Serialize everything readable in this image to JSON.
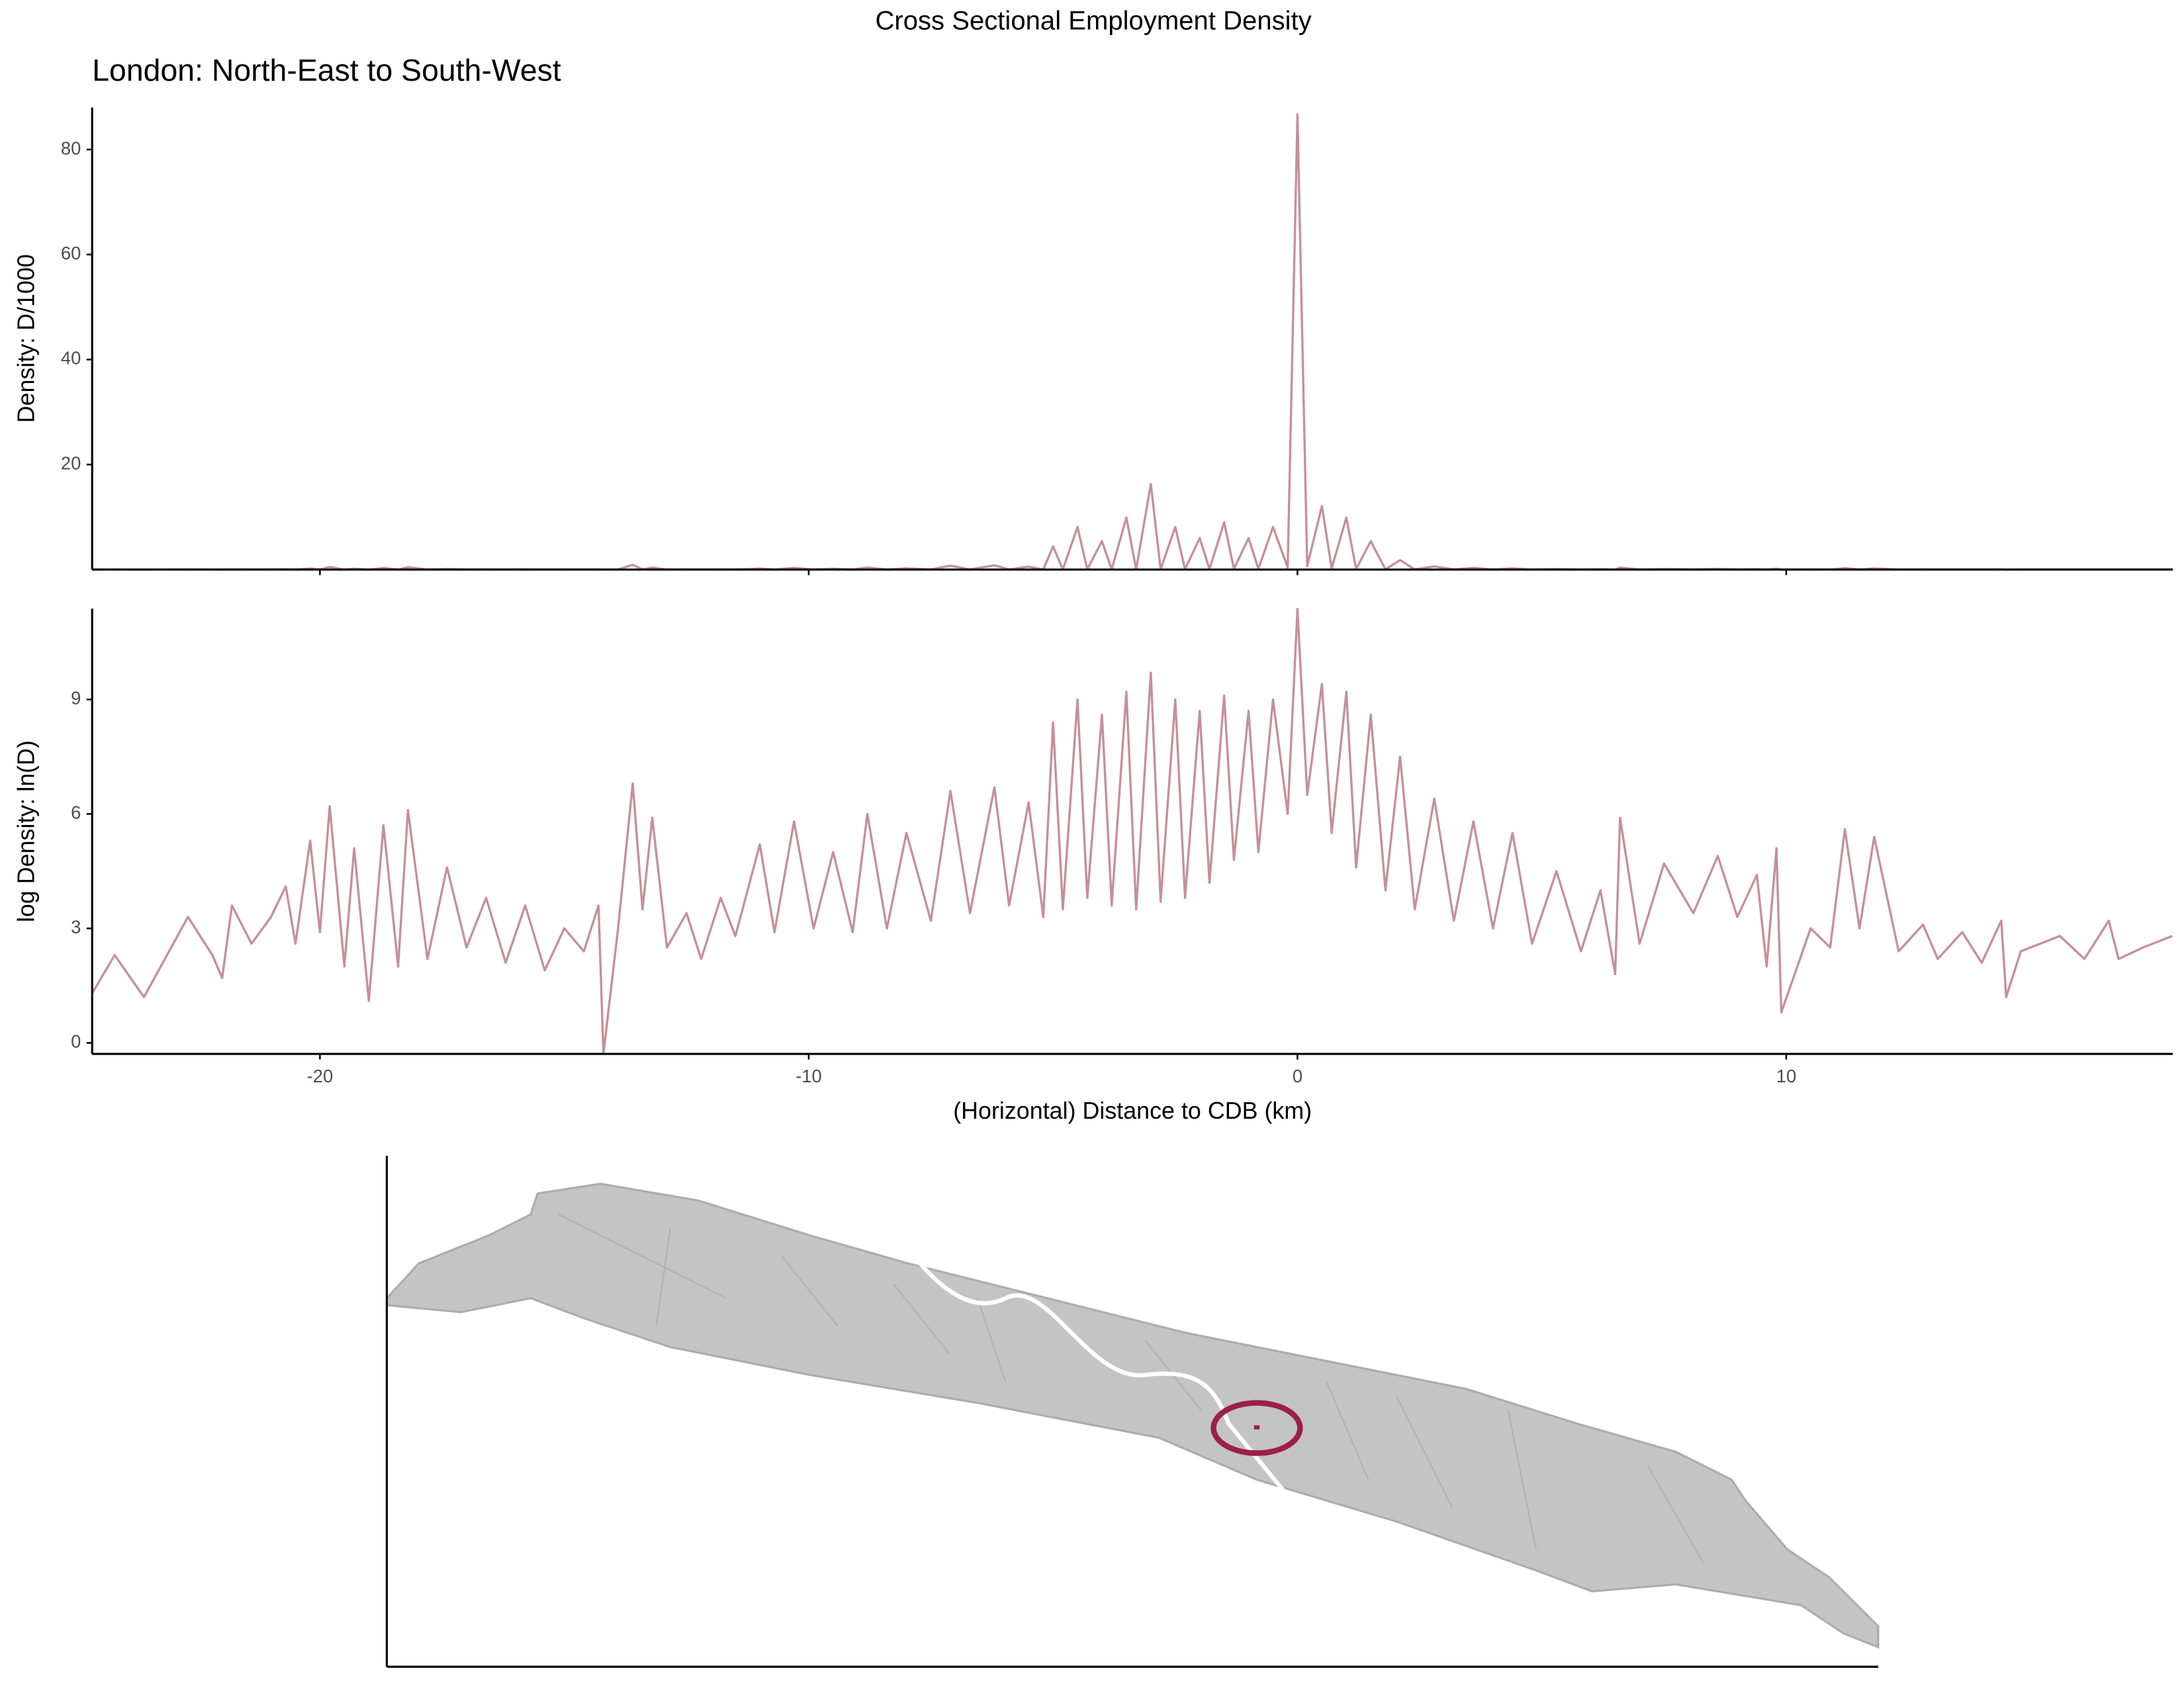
{
  "chart_data": [
    {
      "type": "line",
      "title": "Cross Sectional Employment Density",
      "subtitle": "London: North-East to South-West",
      "ylabel": "Density: D/1000",
      "xlim": [
        -24.66,
        17.91
      ],
      "ylim": [
        0,
        88
      ],
      "yticks": [
        20,
        40,
        60,
        80
      ],
      "x": [
        -24.66,
        -24.2,
        -23.6,
        -22.7,
        -22.2,
        -22.0,
        -21.8,
        -21.4,
        -21.0,
        -20.7,
        -20.5,
        -20.2,
        -20.0,
        -19.8,
        -19.5,
        -19.3,
        -19.0,
        -18.7,
        -18.4,
        -18.2,
        -17.8,
        -17.4,
        -17.0,
        -16.6,
        -16.2,
        -15.8,
        -15.4,
        -15.0,
        -14.6,
        -14.3,
        -14.2,
        -13.9,
        -13.6,
        -13.4,
        -13.2,
        -12.9,
        -12.5,
        -12.2,
        -11.8,
        -11.5,
        -11.0,
        -10.7,
        -10.3,
        -9.9,
        -9.5,
        -9.1,
        -8.8,
        -8.4,
        -8.0,
        -7.5,
        -7.1,
        -6.7,
        -6.2,
        -5.9,
        -5.5,
        -5.2,
        -5.0,
        -4.8,
        -4.5,
        -4.3,
        -4.0,
        -3.8,
        -3.5,
        -3.3,
        -3.0,
        -2.8,
        -2.5,
        -2.3,
        -2.0,
        -1.8,
        -1.5,
        -1.3,
        -1.0,
        -0.8,
        -0.5,
        -0.2,
        0.0,
        0.2,
        0.5,
        0.7,
        1.0,
        1.2,
        1.5,
        1.8,
        2.1,
        2.4,
        2.8,
        3.2,
        3.6,
        4.0,
        4.4,
        4.8,
        5.3,
        5.8,
        6.2,
        6.5,
        6.6,
        7.0,
        7.5,
        8.1,
        8.6,
        9.0,
        9.4,
        9.6,
        9.8,
        9.9,
        10.5,
        10.9,
        11.2,
        11.5,
        11.8,
        12.3,
        12.8,
        13.1,
        13.6,
        14.0,
        14.4,
        14.5,
        14.8,
        15.6,
        16.1,
        16.6,
        16.8,
        17.3,
        17.9
      ],
      "series": [
        {
          "color": "#b8737f",
          "values": [
            0.004,
            0.01,
            0.003,
            0.027,
            0.01,
            0.005,
            0.037,
            0.013,
            0.027,
            0.06,
            0.013,
            0.2,
            0.018,
            0.49,
            0.007,
            0.16,
            0.003,
            0.3,
            0.007,
            0.45,
            0.009,
            0.1,
            0.012,
            0.045,
            0.008,
            0.037,
            0.007,
            0.02,
            0.011,
            0.037,
            0.001,
            0.02,
            0.9,
            0.033,
            0.37,
            0.012,
            0.03,
            0.009,
            0.045,
            0.016,
            0.18,
            0.018,
            0.33,
            0.02,
            0.15,
            0.018,
            0.4,
            0.02,
            0.24,
            0.025,
            0.74,
            0.03,
            0.81,
            0.037,
            0.54,
            0.027,
            4.4,
            0.033,
            8.1,
            0.045,
            5.4,
            0.037,
            9.9,
            0.033,
            16.3,
            0.04,
            8.1,
            0.045,
            6.0,
            0.067,
            9.0,
            0.12,
            6.0,
            0.15,
            8.1,
            0.4,
            86.7,
            0.67,
            12.1,
            0.24,
            9.9,
            0.1,
            5.4,
            0.055,
            1.8,
            0.033,
            0.6,
            0.025,
            0.33,
            0.02,
            0.24,
            0.013,
            0.09,
            0.011,
            0.055,
            0.006,
            0.37,
            0.013,
            0.11,
            0.03,
            0.13,
            0.027,
            0.08,
            0.007,
            0.16,
            0.002,
            0.02,
            0.012,
            0.27,
            0.02,
            0.22,
            0.011,
            0.022,
            0.009,
            0.018,
            0.008,
            0.025,
            0.003,
            0.011,
            0.016,
            0.009,
            0.025,
            0.009,
            0.012,
            0.016
          ]
        }
      ]
    },
    {
      "type": "line",
      "ylabel": "log Density: ln(D)",
      "xlabel": "(Horizontal) Distance to CDB (km)",
      "xlim": [
        -24.66,
        17.91
      ],
      "xticks": [
        -20,
        -10,
        0,
        10
      ],
      "ylim": [
        -0.29,
        11.38
      ],
      "yticks": [
        0,
        3,
        6,
        9
      ],
      "x": [
        -24.66,
        -24.2,
        -23.6,
        -22.7,
        -22.2,
        -22.0,
        -21.8,
        -21.4,
        -21.0,
        -20.7,
        -20.5,
        -20.2,
        -20.0,
        -19.8,
        -19.5,
        -19.3,
        -19.0,
        -18.7,
        -18.4,
        -18.2,
        -17.8,
        -17.4,
        -17.0,
        -16.6,
        -16.2,
        -15.8,
        -15.4,
        -15.0,
        -14.6,
        -14.3,
        -14.2,
        -13.9,
        -13.6,
        -13.4,
        -13.2,
        -12.9,
        -12.5,
        -12.2,
        -11.8,
        -11.5,
        -11.0,
        -10.7,
        -10.3,
        -9.9,
        -9.5,
        -9.1,
        -8.8,
        -8.4,
        -8.0,
        -7.5,
        -7.1,
        -6.7,
        -6.2,
        -5.9,
        -5.5,
        -5.2,
        -5.0,
        -4.8,
        -4.5,
        -4.3,
        -4.0,
        -3.8,
        -3.5,
        -3.3,
        -3.0,
        -2.8,
        -2.5,
        -2.3,
        -2.0,
        -1.8,
        -1.5,
        -1.3,
        -1.0,
        -0.8,
        -0.5,
        -0.2,
        0.0,
        0.2,
        0.5,
        0.7,
        1.0,
        1.2,
        1.5,
        1.8,
        2.1,
        2.4,
        2.8,
        3.2,
        3.6,
        4.0,
        4.4,
        4.8,
        5.3,
        5.8,
        6.2,
        6.5,
        6.6,
        7.0,
        7.5,
        8.1,
        8.6,
        9.0,
        9.4,
        9.6,
        9.8,
        9.9,
        10.5,
        10.9,
        11.2,
        11.5,
        11.8,
        12.3,
        12.8,
        13.1,
        13.6,
        14.0,
        14.4,
        14.5,
        14.8,
        15.6,
        16.1,
        16.6,
        16.8,
        17.3,
        17.9
      ],
      "series": [
        {
          "color": "#b8737f",
          "values": [
            1.3,
            2.3,
            1.2,
            3.3,
            2.3,
            1.7,
            3.6,
            2.6,
            3.3,
            4.1,
            2.6,
            5.3,
            2.9,
            6.2,
            2.0,
            5.1,
            1.1,
            5.7,
            2.0,
            6.1,
            2.2,
            4.6,
            2.5,
            3.8,
            2.1,
            3.6,
            1.9,
            3.0,
            2.4,
            3.6,
            -0.29,
            3.0,
            6.8,
            3.5,
            5.9,
            2.5,
            3.4,
            2.2,
            3.8,
            2.8,
            5.2,
            2.9,
            5.8,
            3.0,
            5.0,
            2.9,
            6.0,
            3.0,
            5.5,
            3.2,
            6.6,
            3.4,
            6.7,
            3.6,
            6.3,
            3.3,
            8.4,
            3.5,
            9.0,
            3.8,
            8.6,
            3.6,
            9.2,
            3.5,
            9.7,
            3.7,
            9.0,
            3.8,
            8.7,
            4.2,
            9.1,
            4.8,
            8.7,
            5.0,
            9.0,
            6.0,
            11.37,
            6.5,
            9.4,
            5.5,
            9.2,
            4.6,
            8.6,
            4.0,
            7.5,
            3.5,
            6.4,
            3.2,
            5.8,
            3.0,
            5.5,
            2.6,
            4.5,
            2.4,
            4.0,
            1.8,
            5.9,
            2.6,
            4.7,
            3.4,
            4.9,
            3.3,
            4.4,
            2.0,
            5.1,
            0.8,
            3.0,
            2.5,
            5.6,
            3.0,
            5.4,
            2.4,
            3.1,
            2.2,
            2.9,
            2.1,
            3.2,
            1.2,
            2.4,
            2.8,
            2.2,
            3.2,
            2.2,
            2.5,
            2.8
          ]
        }
      ]
    }
  ]
}
